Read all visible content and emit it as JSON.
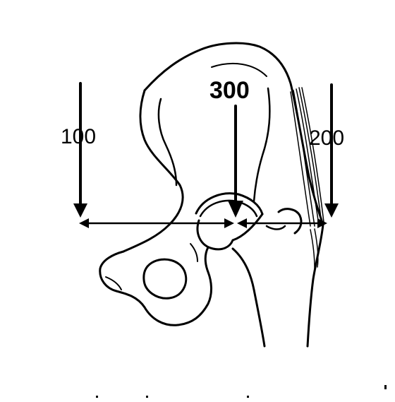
{
  "diagram": {
    "labels": {
      "left_force": "100",
      "center_force": "300",
      "right_force": "200"
    },
    "colors": {
      "ink": "#000000",
      "background": "#ffffff"
    }
  }
}
